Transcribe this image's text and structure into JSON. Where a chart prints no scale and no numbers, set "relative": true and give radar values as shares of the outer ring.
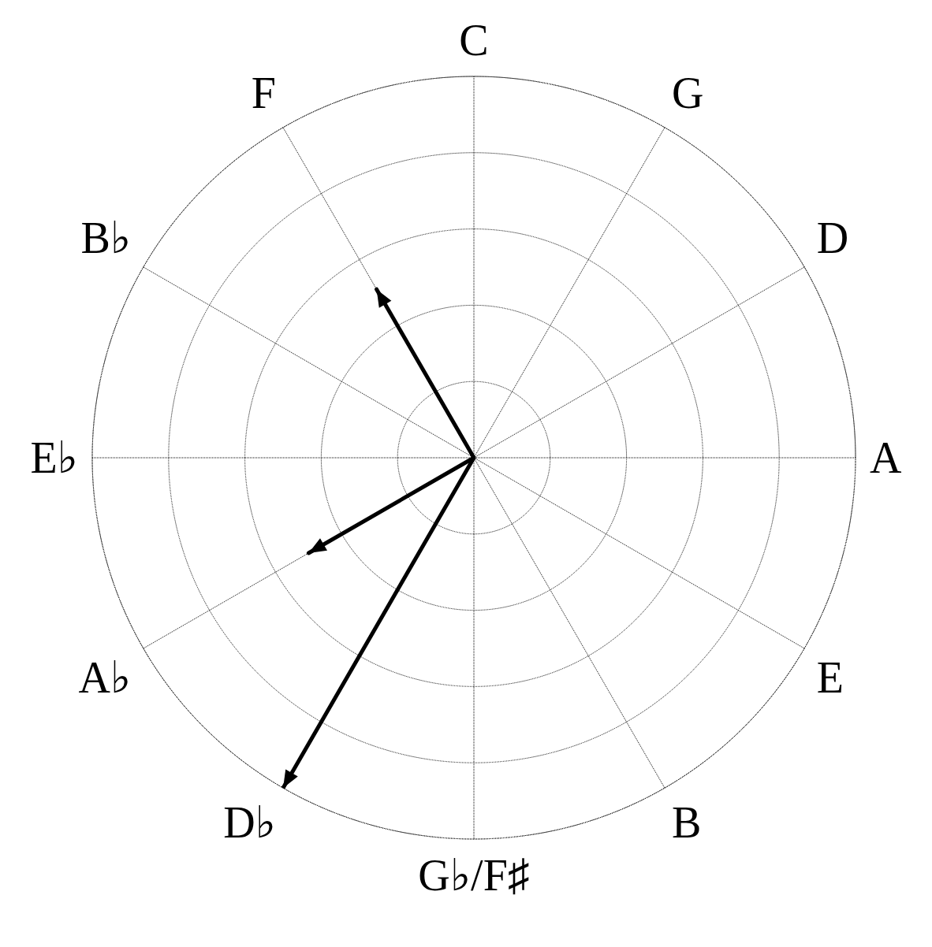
{
  "chart_data": {
    "type": "radar",
    "relative": true,
    "grid": true,
    "categories": [
      "C",
      "G",
      "D",
      "A",
      "E",
      "B",
      "G♭/F♯",
      "D♭",
      "A♭",
      "E♭",
      "B♭",
      "F"
    ],
    "series": [
      {
        "color": "#000000",
        "values": [
          null,
          null,
          null,
          null,
          null,
          null,
          null,
          1.0,
          0.5,
          null,
          null,
          0.51
        ]
      }
    ]
  }
}
